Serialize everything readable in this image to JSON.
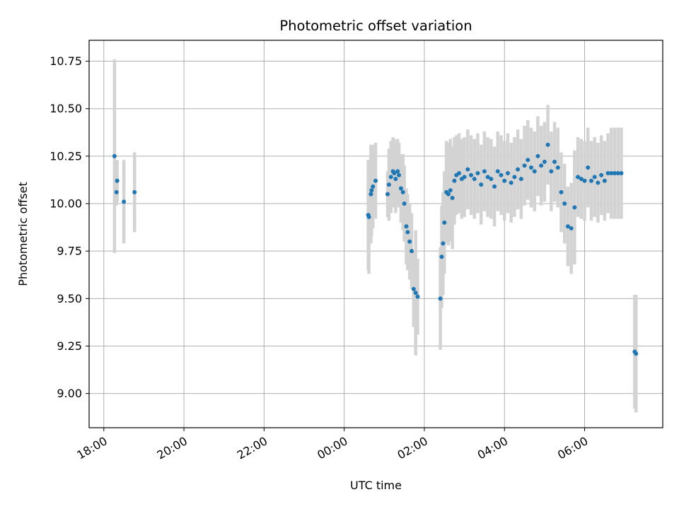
{
  "chart_data": {
    "type": "scatter",
    "title": "Photometric offset variation",
    "xlabel": "UTC time",
    "ylabel": "Photometric offset",
    "x_ticks": [
      "18:00",
      "20:00",
      "22:00",
      "00:00",
      "02:00",
      "04:00",
      "06:00"
    ],
    "y_ticks": [
      "9.00",
      "9.25",
      "9.50",
      "9.75",
      "10.00",
      "10.25",
      "10.50",
      "10.75"
    ],
    "xlim": [
      "17:38",
      "07:57"
    ],
    "ylim": [
      8.82,
      10.86
    ],
    "grid": true,
    "colors": {
      "point": "#1f77b4",
      "errorbar": "#d3d3d3",
      "grid": "#b0b0b0"
    },
    "series": [
      {
        "x": [
          "18:16",
          "18:19",
          "18:20",
          "18:30",
          "18:46",
          "00:36",
          "00:37",
          "00:40",
          "00:41",
          "00:43",
          "00:47",
          "01:05",
          "01:07",
          "01:10",
          "01:13",
          "01:15",
          "01:17",
          "01:20",
          "01:22",
          "01:25",
          "01:28",
          "01:30",
          "01:33",
          "01:35",
          "01:38",
          "01:41",
          "01:44",
          "01:47",
          "01:50",
          "02:24",
          "02:26",
          "02:28",
          "02:30",
          "02:33",
          "02:36",
          "02:39",
          "02:42",
          "02:45",
          "02:48",
          "02:52",
          "02:56",
          "03:00",
          "03:05",
          "03:10",
          "03:15",
          "03:20",
          "03:25",
          "03:30",
          "03:35",
          "03:40",
          "03:45",
          "03:50",
          "03:55",
          "04:00",
          "04:05",
          "04:10",
          "04:15",
          "04:20",
          "04:25",
          "04:30",
          "04:35",
          "04:40",
          "04:45",
          "04:50",
          "04:55",
          "05:00",
          "05:05",
          "05:10",
          "05:15",
          "05:20",
          "05:25",
          "05:30",
          "05:35",
          "05:40",
          "05:45",
          "05:50",
          "05:55",
          "06:00",
          "06:05",
          "06:10",
          "06:15",
          "06:20",
          "06:25",
          "06:30",
          "06:35",
          "06:40",
          "06:45",
          "06:50",
          "06:55",
          "07:15",
          "07:17"
        ],
        "y": [
          10.25,
          10.06,
          10.12,
          10.01,
          10.06,
          9.94,
          9.93,
          10.05,
          10.07,
          10.09,
          10.12,
          10.05,
          10.1,
          10.14,
          10.17,
          10.16,
          10.13,
          10.17,
          10.15,
          10.08,
          10.06,
          10.0,
          9.88,
          9.85,
          9.8,
          9.75,
          9.55,
          9.53,
          9.51,
          9.5,
          9.72,
          9.79,
          9.9,
          10.06,
          10.05,
          10.07,
          10.03,
          10.12,
          10.15,
          10.16,
          10.13,
          10.14,
          10.18,
          10.15,
          10.13,
          10.16,
          10.1,
          10.17,
          10.14,
          10.13,
          10.09,
          10.17,
          10.15,
          10.12,
          10.16,
          10.11,
          10.14,
          10.18,
          10.13,
          10.2,
          10.23,
          10.19,
          10.17,
          10.25,
          10.2,
          10.22,
          10.31,
          10.17,
          10.22,
          10.19,
          10.06,
          10.0,
          9.88,
          9.87,
          9.98,
          10.14,
          10.13,
          10.12,
          10.19,
          10.12,
          10.14,
          10.11,
          10.15,
          10.12,
          10.16,
          10.16,
          10.16,
          10.16,
          10.16,
          9.22,
          9.21
        ],
        "err": [
          0.51,
          0.07,
          0.11,
          0.22,
          0.21,
          0.29,
          0.3,
          0.26,
          0.24,
          0.22,
          0.2,
          0.12,
          0.19,
          0.19,
          0.18,
          0.18,
          0.18,
          0.17,
          0.17,
          0.18,
          0.2,
          0.2,
          0.2,
          0.2,
          0.2,
          0.2,
          0.2,
          0.33,
          0.2,
          0.27,
          0.27,
          0.27,
          0.27,
          0.27,
          0.27,
          0.27,
          0.27,
          0.23,
          0.21,
          0.21,
          0.21,
          0.21,
          0.21,
          0.21,
          0.21,
          0.21,
          0.21,
          0.21,
          0.21,
          0.21,
          0.21,
          0.21,
          0.21,
          0.21,
          0.21,
          0.21,
          0.21,
          0.21,
          0.21,
          0.21,
          0.21,
          0.21,
          0.21,
          0.21,
          0.21,
          0.21,
          0.21,
          0.21,
          0.21,
          0.21,
          0.21,
          0.21,
          0.21,
          0.24,
          0.3,
          0.21,
          0.21,
          0.21,
          0.21,
          0.21,
          0.21,
          0.21,
          0.21,
          0.21,
          0.21,
          0.24,
          0.24,
          0.24,
          0.24,
          0.3,
          0.31
        ]
      }
    ]
  }
}
